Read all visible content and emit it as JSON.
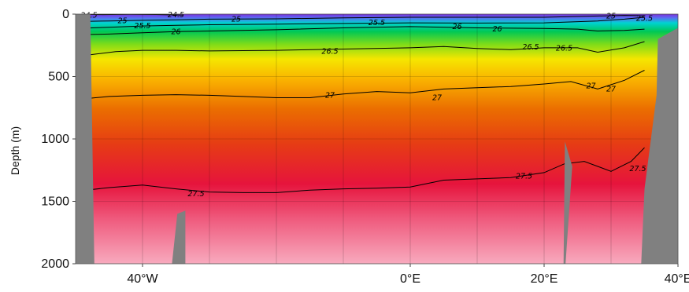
{
  "chart_data": {
    "type": "heatmap",
    "title": "",
    "xlabel": "",
    "ylabel": "Depth (m)",
    "xlim": [
      -50,
      40
    ],
    "ylim": [
      2000,
      0
    ],
    "x_ticks": [
      {
        "value": -40,
        "label": "40°W"
      },
      {
        "value": 0,
        "label": "0°E"
      },
      {
        "value": 20,
        "label": "20°E"
      },
      {
        "value": 40,
        "label": "40°E"
      }
    ],
    "y_ticks": [
      {
        "value": 0,
        "label": "0"
      },
      {
        "value": 500,
        "label": "500"
      },
      {
        "value": 1000,
        "label": "1000"
      },
      {
        "value": 1500,
        "label": "1500"
      },
      {
        "value": 2000,
        "label": "2000"
      }
    ],
    "x_minor_gridlines": [
      -30,
      -20,
      -10,
      10,
      30
    ],
    "grid": true,
    "colormap": [
      {
        "value": 24.5,
        "color": "#8a2be2"
      },
      {
        "value": 25.0,
        "color": "#1e90ff"
      },
      {
        "value": 25.3,
        "color": "#00d2d2"
      },
      {
        "value": 25.6,
        "color": "#00c855"
      },
      {
        "value": 26.0,
        "color": "#5fd21e"
      },
      {
        "value": 26.3,
        "color": "#b4dc14"
      },
      {
        "value": 26.6,
        "color": "#f5e600"
      },
      {
        "value": 26.8,
        "color": "#fab400"
      },
      {
        "value": 27.0,
        "color": "#eb7800"
      },
      {
        "value": 27.3,
        "color": "#e63c14"
      },
      {
        "value": 27.55,
        "color": "#e6143c"
      },
      {
        "value": 27.75,
        "color": "#f06e8c"
      },
      {
        "value": 27.9,
        "color": "#f5a0b4"
      }
    ],
    "isopycnals": [
      {
        "level": 24.5,
        "x": [
          -50,
          -46,
          -42,
          -38,
          -34
        ],
        "y": [
          0,
          4,
          2,
          3,
          8
        ]
      },
      {
        "level": 25,
        "x": [
          -50,
          -45,
          -40,
          -35,
          -30,
          -20,
          -10,
          0,
          10,
          20,
          28,
          32,
          34,
          35
        ],
        "y": [
          60,
          55,
          50,
          45,
          40,
          38,
          30,
          25,
          25,
          25,
          15,
          10,
          12,
          15
        ]
      },
      {
        "level": 25.5,
        "x": [
          -50,
          -45,
          -40,
          -35,
          -30,
          -20,
          -10,
          0,
          10,
          20,
          28,
          32,
          34,
          35
        ],
        "y": [
          115,
          105,
          95,
          90,
          85,
          80,
          75,
          70,
          72,
          70,
          55,
          40,
          30,
          25
        ]
      },
      {
        "level": 26,
        "x": [
          -50,
          -45,
          -40,
          -35,
          -30,
          -20,
          -10,
          0,
          10,
          20,
          25,
          28,
          32,
          35
        ],
        "y": [
          165,
          160,
          150,
          140,
          135,
          125,
          110,
          100,
          110,
          115,
          120,
          135,
          130,
          120
        ]
      },
      {
        "level": 26.5,
        "x": [
          -50,
          -47,
          -44,
          -40,
          -35,
          -30,
          -20,
          -10,
          0,
          5,
          10,
          15,
          20,
          25,
          28,
          32,
          35
        ],
        "y": [
          340,
          320,
          300,
          290,
          290,
          295,
          290,
          280,
          270,
          260,
          275,
          285,
          270,
          270,
          305,
          270,
          220
        ]
      },
      {
        "level": 27,
        "x": [
          -50,
          -45,
          -40,
          -35,
          -30,
          -25,
          -20,
          -15,
          -10,
          -5,
          0,
          5,
          10,
          15,
          20,
          24,
          28,
          32,
          35
        ],
        "y": [
          685,
          660,
          650,
          645,
          650,
          660,
          670,
          670,
          640,
          620,
          630,
          600,
          590,
          580,
          560,
          540,
          600,
          530,
          450
        ]
      },
      {
        "level": 27.5,
        "x": [
          -50,
          -45,
          -40,
          -35,
          -30,
          -25,
          -20,
          -15,
          -10,
          -5,
          0,
          5,
          10,
          15,
          20,
          23,
          26,
          30,
          33,
          35
        ],
        "y": [
          1420,
          1390,
          1370,
          1400,
          1425,
          1430,
          1430,
          1410,
          1400,
          1395,
          1385,
          1330,
          1320,
          1310,
          1270,
          1200,
          1180,
          1260,
          1180,
          1070
        ]
      }
    ],
    "contour_labels": [
      {
        "text": "24.5",
        "x": -48,
        "y": 8
      },
      {
        "text": "24.5",
        "x": -35,
        "y": 5
      },
      {
        "text": "25",
        "x": -43,
        "y": 55
      },
      {
        "text": "25",
        "x": -26,
        "y": 40
      },
      {
        "text": "25",
        "x": 30,
        "y": 15
      },
      {
        "text": "25.5",
        "x": 35,
        "y": 35
      },
      {
        "text": "25.5",
        "x": -40,
        "y": 95
      },
      {
        "text": "25.5",
        "x": -5,
        "y": 70
      },
      {
        "text": "26",
        "x": -35,
        "y": 140
      },
      {
        "text": "26",
        "x": 7,
        "y": 100
      },
      {
        "text": "26",
        "x": 13,
        "y": 120
      },
      {
        "text": "26.5",
        "x": -12,
        "y": 300
      },
      {
        "text": "26.5",
        "x": 18,
        "y": 265
      },
      {
        "text": "26.5",
        "x": 23,
        "y": 275
      },
      {
        "text": "27",
        "x": -12,
        "y": 650
      },
      {
        "text": "27",
        "x": 4,
        "y": 670
      },
      {
        "text": "27",
        "x": 27,
        "y": 575
      },
      {
        "text": "27",
        "x": 30,
        "y": 600
      },
      {
        "text": "27.5",
        "x": -32,
        "y": 1440
      },
      {
        "text": "27.5",
        "x": 17,
        "y": 1300
      },
      {
        "text": "27.5",
        "x": 34,
        "y": 1240
      }
    ],
    "bathymetry": [
      {
        "x": [
          -50,
          -47.8,
          -47.2,
          -50
        ],
        "y": [
          0,
          0,
          2000,
          2000
        ]
      },
      {
        "x": [
          -34.8,
          -33.6,
          -33.6,
          -35.6
        ],
        "y": [
          1600,
          1575,
          2000,
          2000
        ]
      },
      {
        "x": [
          22.9,
          23.1,
          24.2,
          23.2,
          22.5
        ],
        "y": [
          2000,
          1020,
          1220,
          2000,
          2000
        ]
      },
      {
        "x": [
          40,
          40,
          34.5,
          35,
          36.8,
          37,
          40
        ],
        "y": [
          0,
          2000,
          2000,
          1400,
          650,
          200,
          110
        ]
      }
    ],
    "land_color": "#808080"
  }
}
